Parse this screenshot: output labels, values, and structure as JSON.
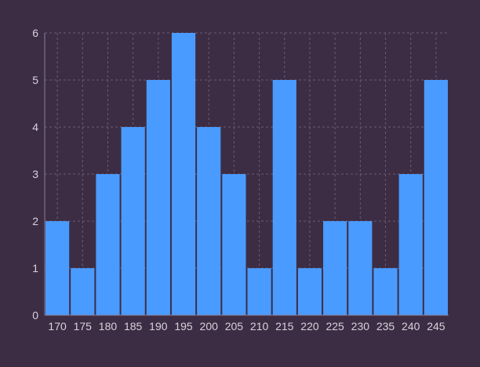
{
  "chart_data": {
    "type": "bar",
    "title": "",
    "xlabel": "",
    "ylabel": "",
    "categories": [
      "170",
      "175",
      "180",
      "185",
      "190",
      "195",
      "200",
      "205",
      "210",
      "215",
      "220",
      "225",
      "230",
      "235",
      "240",
      "245"
    ],
    "values": [
      2,
      1,
      3,
      4,
      5,
      6,
      4,
      3,
      1,
      5,
      1,
      2,
      2,
      1,
      3,
      5
    ],
    "ylim": [
      0,
      6
    ],
    "yticks": [
      "0",
      "1",
      "2",
      "3",
      "4",
      "5",
      "6"
    ],
    "grid": true,
    "colors": {
      "bar": "#4a9bff",
      "background": "#3c2d44",
      "grid": "#6a5b73",
      "text": "#d8d2dc"
    }
  }
}
